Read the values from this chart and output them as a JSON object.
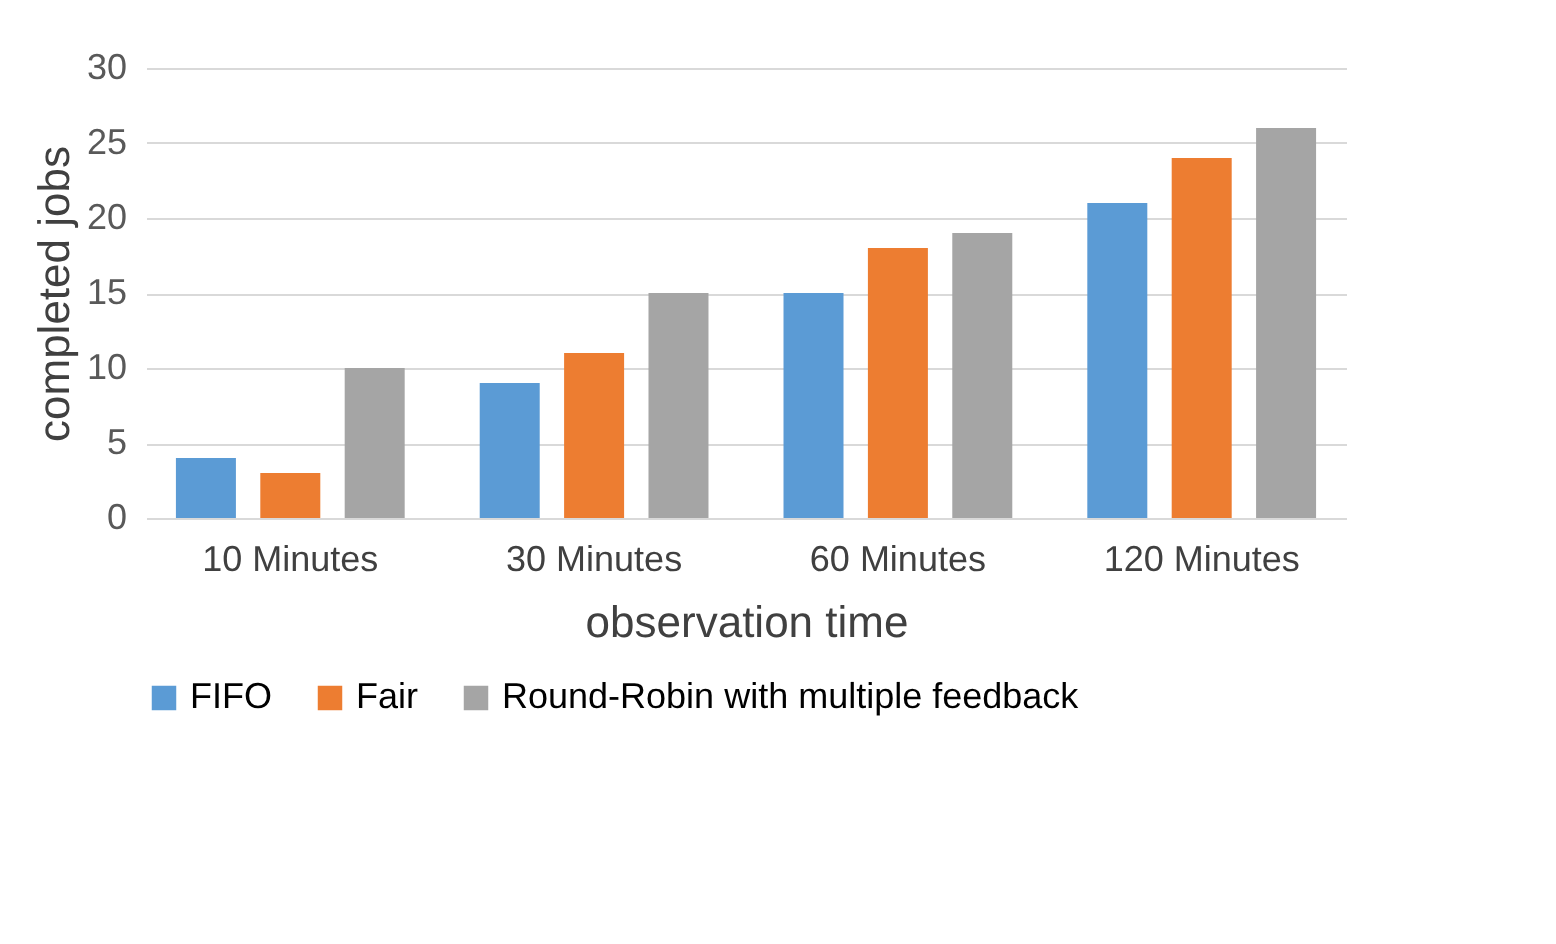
{
  "chart_data": {
    "type": "bar",
    "xlabel": "observation time",
    "ylabel": "completed jobs",
    "categories": [
      "10 Minutes",
      "30 Minutes",
      "60 Minutes",
      "120 Minutes"
    ],
    "series": [
      {
        "name": "FIFO",
        "color": "#5b9bd5",
        "values": [
          4,
          9,
          15,
          21
        ]
      },
      {
        "name": "Fair",
        "color": "#ed7d31",
        "values": [
          3,
          11,
          18,
          24
        ]
      },
      {
        "name": "Round-Robin with multiple feedback",
        "color": "#a5a5a5",
        "values": [
          10,
          15,
          19,
          26
        ]
      }
    ],
    "ylim": [
      0,
      30
    ],
    "yticks": [
      0,
      5,
      10,
      15,
      20,
      25,
      30
    ],
    "grid": "y",
    "legend": "bottom"
  }
}
